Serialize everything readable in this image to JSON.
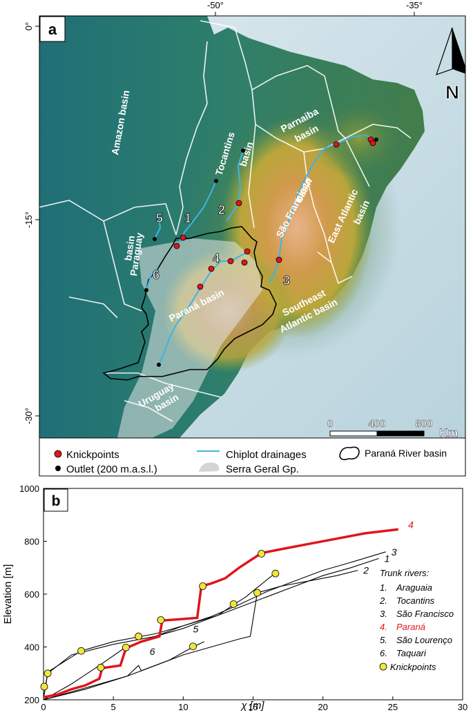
{
  "map": {
    "panel_label": "a",
    "lon_ticks": [
      "-50°",
      "-35°"
    ],
    "lat_ticks": [
      "0°",
      "-15°",
      "-30°"
    ],
    "north_label": "N",
    "scale_labels": [
      "0",
      "400",
      "800"
    ],
    "scale_unit": "Km",
    "basin_labels": {
      "amazon": "Amazon basin",
      "tocantins_1": "Tocantins",
      "tocantins_2": "basin",
      "parnaiba_1": "Parnaiba",
      "parnaiba_2": "basin",
      "sao_francisco_1": "São Francisco",
      "sao_francisco_2": "basin",
      "east_atlantic_1": "East Atlantic",
      "east_atlantic_2": "basin",
      "paraguay_1": "Paraguay",
      "paraguay_2": "basin",
      "parana": "Paraná basin",
      "southeast_1": "Southeast",
      "southeast_2": "Atlantic basin",
      "uruguay_1": "Uruguay",
      "uruguay_2": "basin"
    },
    "river_numbers": [
      "1",
      "2",
      "3",
      "4",
      "5",
      "6"
    ],
    "legend": {
      "knickpoints": "Knickpoints",
      "outlet": "Outlet (200 m.a.s.l.)",
      "chiplot": "Chiplot drainages",
      "serra_geral": "Serra Geral Gp.",
      "parana_basin": "Paraná River basin"
    },
    "colors": {
      "knickpoint": "#e0151a",
      "outlet": "#000000",
      "drainage": "#3cb4e6",
      "basin_outline_white": "#ffffff",
      "parana_outline": "#000000",
      "ocean": "#c4dbe3"
    }
  },
  "plot": {
    "panel_label": "b",
    "ylabel": "Elevation [m]",
    "xlabel": "χ [m]",
    "legend_title": "Trunk rivers:",
    "legend_items": [
      {
        "num": "1.",
        "name": "Araguaia",
        "color": "#000000"
      },
      {
        "num": "2.",
        "name": "Tocantins",
        "color": "#000000"
      },
      {
        "num": "3.",
        "name": "São Francisco",
        "color": "#000000"
      },
      {
        "num": "4.",
        "name": "Paraná",
        "color": "#e0151a"
      },
      {
        "num": "5.",
        "name": "São Lourenço",
        "color": "#000000"
      },
      {
        "num": "6.",
        "name": "Taquari",
        "color": "#000000"
      }
    ],
    "knickpoint_label": "Knickpoints"
  },
  "chart_data": {
    "type": "line",
    "xlabel": "χ [m]",
    "ylabel": "Elevation [m]",
    "xlim": [
      0,
      30
    ],
    "ylim": [
      200,
      1000
    ],
    "xticks": [
      0,
      5,
      10,
      15,
      20,
      25,
      30
    ],
    "yticks": [
      200,
      400,
      600,
      800,
      1000
    ],
    "series": [
      {
        "name": "1",
        "color": "#000000",
        "x": [
          0,
          0.3,
          2,
          5,
          8,
          10,
          12,
          14,
          16,
          18,
          20,
          22,
          24
        ],
        "y": [
          205,
          300,
          370,
          410,
          440,
          470,
          510,
          550,
          590,
          630,
          670,
          700,
          735
        ]
      },
      {
        "name": "2",
        "color": "#000000",
        "x": [
          0,
          3,
          6,
          8,
          10,
          12,
          14,
          14.8,
          15.3,
          17,
          19,
          21,
          22.5
        ],
        "y": [
          200,
          240,
          290,
          330,
          370,
          400,
          430,
          440,
          605,
          630,
          650,
          670,
          690
        ]
      },
      {
        "name": "3",
        "color": "#000000",
        "x": [
          0,
          0.3,
          2.7,
          5,
          8,
          10,
          12,
          14,
          16,
          18,
          20,
          22,
          24.5
        ],
        "y": [
          205,
          305,
          385,
          420,
          450,
          480,
          515,
          560,
          610,
          650,
          690,
          720,
          760
        ]
      },
      {
        "name": "4",
        "color": "#e0151a",
        "x": [
          0,
          1,
          2,
          3,
          4,
          4.2,
          5.5,
          5.9,
          7,
          8.3,
          8.5,
          11,
          11.3,
          12,
          13,
          14,
          15.6,
          17,
          19,
          21,
          23,
          25.4
        ],
        "y": [
          210,
          220,
          240,
          255,
          280,
          320,
          330,
          395,
          420,
          440,
          500,
          510,
          630,
          640,
          660,
          700,
          755,
          770,
          790,
          810,
          830,
          845
        ]
      },
      {
        "name": "5",
        "color": "#000000",
        "x": [
          0,
          2,
          4,
          5.9,
          7,
          10,
          12.5,
          13.6,
          14.5,
          15.3,
          16.6
        ],
        "y": [
          200,
          260,
          330,
          400,
          420,
          480,
          520,
          560,
          590,
          625,
          680
        ]
      },
      {
        "name": "6",
        "color": "#000000",
        "x": [
          0,
          2,
          4,
          6,
          6.8,
          7,
          9,
          10.7,
          11.5
        ],
        "y": [
          200,
          230,
          260,
          290,
          330,
          310,
          350,
          400,
          420
        ]
      }
    ],
    "knickpoints": [
      {
        "x": 0.05,
        "y": 250
      },
      {
        "x": 0.3,
        "y": 300
      },
      {
        "x": 2.7,
        "y": 385
      },
      {
        "x": 4.1,
        "y": 322
      },
      {
        "x": 5.9,
        "y": 398
      },
      {
        "x": 6.8,
        "y": 440
      },
      {
        "x": 8.4,
        "y": 502
      },
      {
        "x": 10.7,
        "y": 402
      },
      {
        "x": 11.4,
        "y": 630
      },
      {
        "x": 13.6,
        "y": 562
      },
      {
        "x": 15.3,
        "y": 605
      },
      {
        "x": 15.6,
        "y": 753
      },
      {
        "x": 16.6,
        "y": 678
      }
    ],
    "series_labels": [
      "1",
      "2",
      "3",
      "4",
      "5",
      "6"
    ]
  }
}
